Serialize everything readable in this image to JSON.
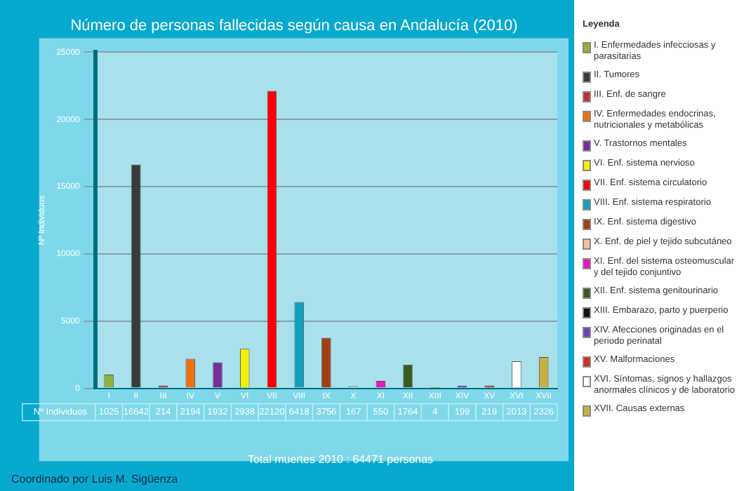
{
  "chart_data": {
    "type": "bar",
    "title": "Número de personas fallecidas según causa en Andalucía (2010)",
    "ylabel": "Nº Individuos",
    "legend_title": "Leyenda",
    "stacked": true,
    "legend": "right",
    "grid": "y",
    "data_labels": true,
    "ylim": [
      0,
      25000
    ],
    "yticks": [
      0,
      5000,
      10000,
      15000,
      20000,
      25000
    ],
    "categories": [
      "I",
      "II",
      "III",
      "IV",
      "V",
      "VI",
      "VII",
      "VIII",
      "IX",
      "X",
      "XI",
      "XII",
      "XIII",
      "XIV",
      "XV",
      "XVI",
      "XVII"
    ],
    "series": [
      {
        "name": "I. Enfermedades infecciosas y parasitarias",
        "color": "#8db33a",
        "values": [
          1025,
          null,
          null,
          null,
          null,
          null,
          null,
          null,
          null,
          null,
          null,
          null,
          null,
          null,
          null,
          null,
          null
        ]
      },
      {
        "name": "II. Tumores",
        "color": "#3a3a3a",
        "values": [
          null,
          16642,
          null,
          null,
          null,
          null,
          null,
          null,
          null,
          null,
          null,
          null,
          null,
          null,
          null,
          null,
          null
        ]
      },
      {
        "name": "III. Enf. de sangre",
        "color": "#c03030",
        "values": [
          null,
          null,
          214,
          null,
          null,
          null,
          null,
          null,
          null,
          null,
          null,
          null,
          null,
          null,
          null,
          null,
          null
        ]
      },
      {
        "name": "IV. Enfermedades endocrinas, nutricionales y metabólicas",
        "color": "#f07010",
        "values": [
          null,
          null,
          null,
          2194,
          null,
          null,
          null,
          null,
          null,
          null,
          null,
          null,
          null,
          null,
          null,
          null,
          null
        ]
      },
      {
        "name": "V. Trastornos mentales",
        "color": "#7a2a9a",
        "values": [
          null,
          null,
          null,
          null,
          1932,
          null,
          null,
          null,
          null,
          null,
          null,
          null,
          null,
          null,
          null,
          null,
          null
        ]
      },
      {
        "name": "VI. Enf. sistema nervioso",
        "color": "#f0f000",
        "values": [
          null,
          null,
          null,
          null,
          null,
          2938,
          null,
          null,
          null,
          null,
          null,
          null,
          null,
          null,
          null,
          null,
          null
        ]
      },
      {
        "name": "VII. Enf. sistema circulatorio",
        "color": "#ff0000",
        "values": [
          null,
          null,
          null,
          null,
          null,
          null,
          22120,
          null,
          null,
          null,
          null,
          null,
          null,
          null,
          null,
          null,
          null
        ]
      },
      {
        "name": "VIII. Enf. sistema respiratorio",
        "color": "#10a0c0",
        "values": [
          null,
          null,
          null,
          null,
          null,
          null,
          null,
          6418,
          null,
          null,
          null,
          null,
          null,
          null,
          null,
          null,
          null
        ]
      },
      {
        "name": "IX. Enf. sistema digestivo",
        "color": "#a04010",
        "values": [
          null,
          null,
          null,
          null,
          null,
          null,
          null,
          null,
          3756,
          null,
          null,
          null,
          null,
          null,
          null,
          null,
          null
        ]
      },
      {
        "name": "X. Enf. de piel y tejido subcutáneo",
        "color": "#f0c0a0",
        "values": [
          null,
          null,
          null,
          null,
          null,
          null,
          null,
          null,
          null,
          167,
          null,
          null,
          null,
          null,
          null,
          null,
          null
        ]
      },
      {
        "name": "XI. Enf. del sistema osteomuscular y del tejido conjuntivo",
        "color": "#f010c0",
        "values": [
          null,
          null,
          null,
          null,
          null,
          null,
          null,
          null,
          null,
          null,
          550,
          null,
          null,
          null,
          null,
          null,
          null
        ]
      },
      {
        "name": "XII. Enf. sistema genitourinario",
        "color": "#3a5a20",
        "values": [
          null,
          null,
          null,
          null,
          null,
          null,
          null,
          null,
          null,
          null,
          null,
          1764,
          null,
          null,
          null,
          null,
          null
        ]
      },
      {
        "name": "XIII. Embarazo, parto y puerperio",
        "color": "#101010",
        "values": [
          null,
          null,
          null,
          null,
          null,
          null,
          null,
          null,
          null,
          null,
          null,
          null,
          4,
          null,
          null,
          null,
          null
        ]
      },
      {
        "name": "XIV. Afecciones originadas en el periodo perinatal",
        "color": "#7040c0",
        "values": [
          null,
          null,
          null,
          null,
          null,
          null,
          null,
          null,
          null,
          null,
          null,
          null,
          null,
          199,
          null,
          null,
          null
        ]
      },
      {
        "name": "XV. Malformaciones",
        "color": "#d03020",
        "values": [
          null,
          null,
          null,
          null,
          null,
          null,
          null,
          null,
          null,
          null,
          null,
          null,
          null,
          null,
          219,
          null,
          null
        ]
      },
      {
        "name": "XVI. Síntomas, signos y hallazgos anormales clínicos y de laboratorio",
        "color": "#ffffff",
        "values": [
          null,
          null,
          null,
          null,
          null,
          null,
          null,
          null,
          null,
          null,
          null,
          null,
          null,
          null,
          null,
          2013,
          null
        ]
      },
      {
        "name": "XVII. Causas externas",
        "color": "#c8b040",
        "values": [
          null,
          null,
          null,
          null,
          null,
          null,
          null,
          null,
          null,
          null,
          null,
          null,
          null,
          null,
          null,
          null,
          2326
        ]
      }
    ],
    "annotations": [
      "Total muertes 2010 : 64471 personas",
      "Coordinado por Luis M. Sigüenza"
    ]
  }
}
